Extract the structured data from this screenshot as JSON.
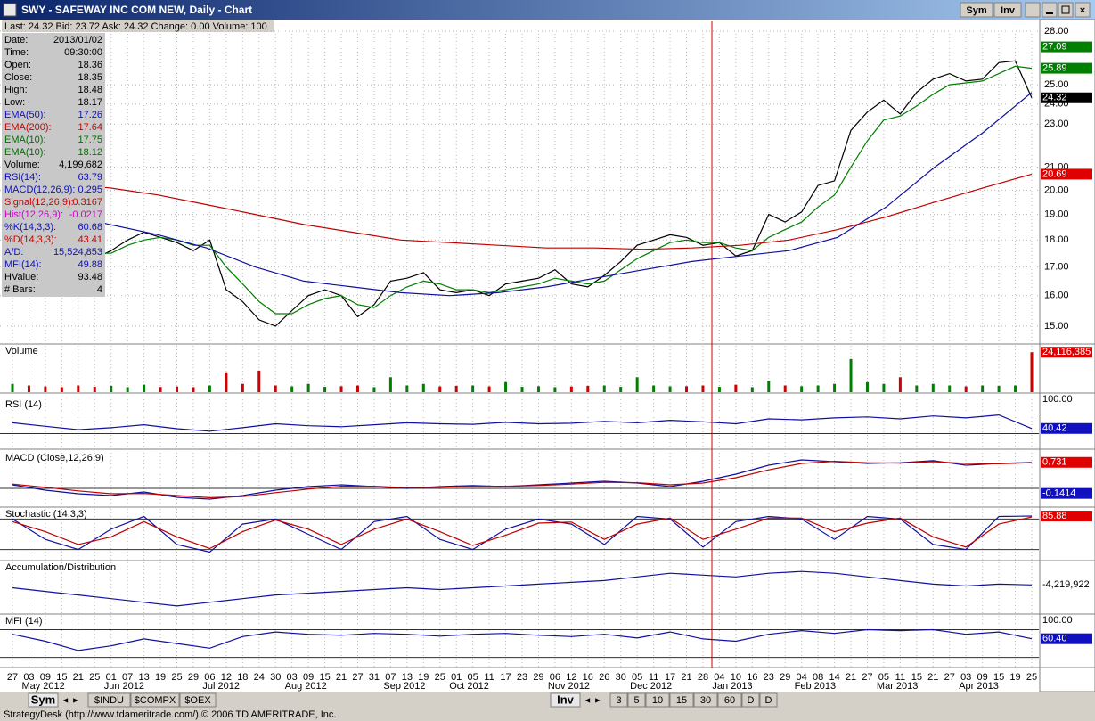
{
  "window": {
    "title": "SWY - SAFEWAY INC COM NEW, Daily - Chart",
    "buttons": [
      "Sym",
      "Inv"
    ]
  },
  "quote": "Last: 24.32  Bid: 23.72  Ask: 24.32  Change: 0.00  Volume: 100",
  "info_panel": [
    {
      "label": "Date:",
      "value": "2013/01/02",
      "color": "#000000"
    },
    {
      "label": "Time:",
      "value": "09:30:00",
      "color": "#000000"
    },
    {
      "label": "Open:",
      "value": "18.36",
      "color": "#000000"
    },
    {
      "label": "Close:",
      "value": "18.35",
      "color": "#000000"
    },
    {
      "label": "High:",
      "value": "18.48",
      "color": "#000000"
    },
    {
      "label": "Low:",
      "value": "18.17",
      "color": "#000000"
    },
    {
      "label": "EMA(50):",
      "value": "17.26",
      "color": "#1010c0"
    },
    {
      "label": "EMA(200):",
      "value": "17.64",
      "color": "#d00000"
    },
    {
      "label": "EMA(10):",
      "value": "17.75",
      "color": "#007000"
    },
    {
      "label": "EMA(10):",
      "value": "18.12",
      "color": "#007000"
    },
    {
      "label": "Volume:",
      "value": "4,199,682",
      "color": "#000000"
    },
    {
      "label": "RSI(14):",
      "value": "63.79",
      "color": "#1010c0"
    },
    {
      "label": "MACD(12,26,9):",
      "value": "0.295",
      "color": "#1010c0"
    },
    {
      "label": "Signal(12,26,9):",
      "value": "0.3167",
      "color": "#d00000"
    },
    {
      "label": "Hist(12,26,9):",
      "value": "-0.0217",
      "color": "#d000d0"
    },
    {
      "label": "%K(14,3,3):",
      "value": "60.68",
      "color": "#1010c0"
    },
    {
      "label": "%D(14,3,3):",
      "value": "43.41",
      "color": "#d00000"
    },
    {
      "label": "A/D:",
      "value": "15,524,853",
      "color": "#1010c0"
    },
    {
      "label": "MFI(14):",
      "value": "49.88",
      "color": "#1010c0"
    },
    {
      "label": "HValue:",
      "value": "93.48",
      "color": "#000000"
    },
    {
      "label": "# Bars:",
      "value": "4",
      "color": "#000000"
    }
  ],
  "price_panel": {
    "ylim": [
      14.47,
      28.59
    ],
    "log": true,
    "yticks": [
      {
        "value": 15,
        "label": "15.00"
      },
      {
        "value": 16,
        "label": "16.00"
      },
      {
        "value": 17,
        "label": "17.00"
      },
      {
        "value": 18,
        "label": "18.00"
      },
      {
        "value": 19,
        "label": "19.00"
      },
      {
        "value": 20,
        "label": "20.00"
      },
      {
        "value": 21,
        "label": "21.00"
      },
      {
        "value": 23,
        "label": "23.00"
      },
      {
        "value": 24,
        "label": "24.00"
      },
      {
        "value": 25,
        "label": "25.00"
      },
      {
        "value": 28,
        "label": "28.00"
      }
    ],
    "badges": [
      {
        "value": 27.09,
        "label": "27.09",
        "color": "#008000"
      },
      {
        "value": 25.89,
        "label": "25.89",
        "color": "#008000"
      },
      {
        "value": 24.32,
        "label": "24.32",
        "color": "#000000"
      },
      {
        "value": 20.69,
        "label": "20.69",
        "color": "#e00000"
      }
    ],
    "series": [
      {
        "color": "#000000",
        "values": [
          19.2,
          18.8,
          18.3,
          17.8,
          17.5,
          17.3,
          17.6,
          18.0,
          18.3,
          18.1,
          17.9,
          17.6,
          18.0,
          16.2,
          15.8,
          15.2,
          15.0,
          15.5,
          16.0,
          16.2,
          16.0,
          15.3,
          15.7,
          16.5,
          16.6,
          16.8,
          16.2,
          16.1,
          16.2,
          16.0,
          16.4,
          16.5,
          16.6,
          16.9,
          16.4,
          16.3,
          16.7,
          17.2,
          17.8,
          18.0,
          18.2,
          18.1,
          17.8,
          17.9,
          17.4,
          17.6,
          19.0,
          18.7,
          19.1,
          20.2,
          20.4,
          22.7,
          23.6,
          24.2,
          23.5,
          24.6,
          25.3,
          25.6,
          25.2,
          25.3,
          26.2,
          26.3,
          24.32
        ]
      },
      {
        "color": "#008000",
        "values": [
          19.0,
          18.9,
          18.6,
          18.2,
          17.8,
          17.5,
          17.5,
          17.8,
          18.0,
          18.1,
          18.0,
          17.8,
          17.8,
          17.0,
          16.4,
          15.8,
          15.4,
          15.4,
          15.7,
          15.9,
          16.0,
          15.7,
          15.6,
          16.0,
          16.3,
          16.5,
          16.4,
          16.2,
          16.2,
          16.1,
          16.2,
          16.3,
          16.4,
          16.6,
          16.5,
          16.4,
          16.5,
          16.9,
          17.3,
          17.6,
          17.9,
          18.0,
          17.9,
          17.9,
          17.7,
          17.6,
          18.1,
          18.4,
          18.7,
          19.3,
          19.8,
          21.0,
          22.2,
          23.2,
          23.4,
          23.9,
          24.5,
          25.0,
          25.1,
          25.2,
          25.6,
          26.0,
          25.89
        ]
      },
      {
        "color": "#1010a0",
        "values": [
          19.6,
          19.1,
          18.6,
          18.2,
          17.7,
          17.0,
          16.5,
          16.3,
          16.1,
          16.0,
          16.1,
          16.3,
          16.6,
          16.9,
          17.2,
          17.4,
          17.6,
          18.1,
          19.3,
          21.0,
          22.6,
          24.6
        ]
      },
      {
        "color": "#c00000",
        "values": [
          20.5,
          20.3,
          20.1,
          19.8,
          19.4,
          19.0,
          18.6,
          18.3,
          18.0,
          17.9,
          17.8,
          17.7,
          17.7,
          17.65,
          17.7,
          17.8,
          18.0,
          18.4,
          18.9,
          19.5,
          20.1,
          20.69
        ]
      }
    ]
  },
  "volume_panel": {
    "label": "Volume",
    "ylim": [
      0,
      28000000
    ],
    "badges": [
      {
        "value": 24116385,
        "label": "24,116,385",
        "color": "#e00000"
      }
    ],
    "values": [
      5000000.0,
      4000000.0,
      3500000.0,
      3000000.0,
      4000000.0,
      3200000.0,
      3800000.0,
      3000000.0,
      4500000.0,
      3100000.0,
      3400000.0,
      3000000.0,
      4000000.0,
      12000000.0,
      5000000.0,
      13000000.0,
      4000000.0,
      3500000.0,
      5000000.0,
      3200000.0,
      3600000.0,
      4000000.0,
      3000000.0,
      9000000.0,
      4000000.0,
      5000000.0,
      3500000.0,
      3800000.0,
      4000000.0,
      3500000.0,
      6000000.0,
      3200000.0,
      3600000.0,
      3000000.0,
      3400000.0,
      3800000.0,
      4000000.0,
      3200000.0,
      9000000.0,
      4000000.0,
      3500000.0,
      3600000.0,
      4000000.0,
      3200000.0,
      4500000.0,
      3000000.0,
      7000000.0,
      4000000.0,
      3600000.0,
      4000000.0,
      5000000.0,
      20000000.0,
      6000000.0,
      5000000.0,
      9000000.0,
      4000000.0,
      5000000.0,
      4000000.0,
      3500000.0,
      4000000.0,
      3800000.0,
      4000000.0,
      24116385
    ]
  },
  "indicators": [
    {
      "label": "RSI (14)",
      "ylim": [
        0,
        100
      ],
      "levels": [
        70,
        30
      ],
      "badges": [
        {
          "value": 100,
          "label": "100.00",
          "color": "#ffffff"
        },
        {
          "value": 40.42,
          "label": "40.42",
          "color": "#1010c0"
        }
      ],
      "series": [
        {
          "color": "#1010a0",
          "values": [
            52,
            45,
            38,
            42,
            48,
            40,
            35,
            42,
            50,
            46,
            44,
            48,
            52,
            50,
            49,
            53,
            50,
            51,
            55,
            52,
            57,
            54,
            50,
            60,
            58,
            62,
            64,
            60,
            66,
            62,
            68,
            40.42
          ]
        }
      ]
    },
    {
      "label": "MACD (Close,12,26,9)",
      "ylim": [
        -0.5,
        1.0
      ],
      "levels": [
        0
      ],
      "badges": [
        {
          "value": 0.731,
          "label": "0.731",
          "color": "#e00000"
        },
        {
          "value": -0.1414,
          "label": "-0.1414",
          "color": "#1010c0"
        }
      ],
      "series": [
        {
          "color": "#1010a0",
          "values": [
            0.1,
            -0.05,
            -0.15,
            -0.2,
            -0.1,
            -0.25,
            -0.3,
            -0.2,
            -0.05,
            0.05,
            0.1,
            0.05,
            0.0,
            0.05,
            0.08,
            0.05,
            0.1,
            0.15,
            0.2,
            0.15,
            0.05,
            0.2,
            0.4,
            0.65,
            0.8,
            0.75,
            0.7,
            0.72,
            0.78,
            0.65,
            0.7,
            0.731
          ]
        },
        {
          "color": "#c00000",
          "values": [
            0.12,
            0.03,
            -0.07,
            -0.15,
            -0.14,
            -0.2,
            -0.26,
            -0.23,
            -0.12,
            -0.02,
            0.06,
            0.06,
            0.02,
            0.03,
            0.06,
            0.06,
            0.08,
            0.12,
            0.17,
            0.16,
            0.1,
            0.15,
            0.3,
            0.52,
            0.7,
            0.76,
            0.72,
            0.71,
            0.75,
            0.7,
            0.69,
            0.72
          ]
        }
      ]
    },
    {
      "label": "Stochastic (14,3,3)",
      "ylim": [
        0,
        100
      ],
      "levels": [
        80,
        20
      ],
      "badges": [
        {
          "value": 85.88,
          "label": "85.88",
          "color": "#e00000"
        }
      ],
      "series": [
        {
          "color": "#1010a0",
          "values": [
            80,
            40,
            20,
            60,
            85,
            30,
            15,
            70,
            80,
            50,
            20,
            75,
            85,
            40,
            20,
            60,
            80,
            70,
            30,
            85,
            80,
            25,
            75,
            85,
            80,
            40,
            85,
            80,
            30,
            20,
            85,
            85.88
          ]
        },
        {
          "color": "#c00000",
          "values": [
            75,
            55,
            30,
            45,
            75,
            45,
            22,
            55,
            78,
            60,
            30,
            60,
            80,
            55,
            28,
            48,
            72,
            74,
            40,
            70,
            82,
            40,
            60,
            82,
            82,
            55,
            72,
            82,
            45,
            25,
            70,
            84
          ]
        }
      ]
    },
    {
      "label": "Accumulation/Distribution",
      "ylim": [
        -12000000,
        2000000
      ],
      "levels": [],
      "badges": [
        {
          "value": -4219922,
          "label": "-4,219,922",
          "color": "#ffffff"
        }
      ],
      "series": [
        {
          "color": "#1010a0",
          "values": [
            -5000000.0,
            -6000000.0,
            -7000000.0,
            -8000000.0,
            -9000000.0,
            -10000000.0,
            -9000000.0,
            -8000000.0,
            -7000000.0,
            -6500000.0,
            -6000000.0,
            -5500000.0,
            -5000000.0,
            -5500000.0,
            -5000000.0,
            -4500000.0,
            -4000000.0,
            -3500000.0,
            -3000000.0,
            -2000000.0,
            -1000000.0,
            -1500000.0,
            -2000000.0,
            -1000000.0,
            -500000.0,
            -1000000.0,
            -2000000.0,
            -3000000.0,
            -4000000.0,
            -4500000.0,
            -4000000.0,
            -4219922
          ]
        }
      ]
    },
    {
      "label": "MFI (14)",
      "ylim": [
        0,
        110
      ],
      "levels": [
        80,
        20
      ],
      "badges": [
        {
          "value": 100,
          "label": "100.00",
          "color": "#ffffff"
        },
        {
          "value": 60.4,
          "label": "60.40",
          "color": "#1010c0"
        }
      ],
      "series": [
        {
          "color": "#1010a0",
          "values": [
            70,
            55,
            35,
            45,
            60,
            50,
            40,
            65,
            75,
            70,
            68,
            72,
            70,
            66,
            70,
            72,
            68,
            65,
            70,
            62,
            75,
            60,
            55,
            70,
            78,
            72,
            80,
            78,
            80,
            70,
            75,
            60.4
          ]
        }
      ]
    }
  ],
  "date_axis": [
    {
      "month": null,
      "days": [
        "27"
      ]
    },
    {
      "month": "May 2012",
      "days": [
        "03",
        "09",
        "15",
        "21",
        "25"
      ]
    },
    {
      "month": "Jun 2012",
      "days": [
        "01",
        "07",
        "13",
        "19",
        "25",
        "29"
      ]
    },
    {
      "month": "Jul 2012",
      "days": [
        "06",
        "12",
        "18",
        "24",
        "30"
      ]
    },
    {
      "month": "Aug 2012",
      "days": [
        "03",
        "09",
        "15",
        "21",
        "27",
        "31"
      ]
    },
    {
      "month": "Sep 2012",
      "days": [
        "07",
        "13",
        "19",
        "25"
      ]
    },
    {
      "month": "Oct 2012",
      "days": [
        "01",
        "05",
        "11",
        "17",
        "23",
        "29"
      ]
    },
    {
      "month": "Nov 2012",
      "days": [
        "06",
        "12",
        "16",
        "26",
        "30"
      ]
    },
    {
      "month": "Dec 2012",
      "days": [
        "05",
        "11",
        "17",
        "21",
        "28"
      ]
    },
    {
      "month": "Jan 2013",
      "days": [
        "04",
        "10",
        "16",
        "23",
        "29"
      ]
    },
    {
      "month": "Feb 2013",
      "days": [
        "04",
        "08",
        "14",
        "21",
        "27"
      ]
    },
    {
      "month": "Mar 2013",
      "days": [
        "05",
        "11",
        "15",
        "21",
        "27"
      ]
    },
    {
      "month": "Apr 2013",
      "days": [
        "03",
        "09",
        "15",
        "19",
        "25"
      ]
    }
  ],
  "symbol_tabs": [
    "Sym",
    "$INDU",
    "$COMPX",
    "$OEX"
  ],
  "period_tabs": [
    "Inv",
    "3",
    "5",
    "10",
    "15",
    "30",
    "60",
    "D",
    "D"
  ],
  "status": "StrategyDesk (http://www.tdameritrade.com/) © 2006 TD AMERITRADE, Inc."
}
